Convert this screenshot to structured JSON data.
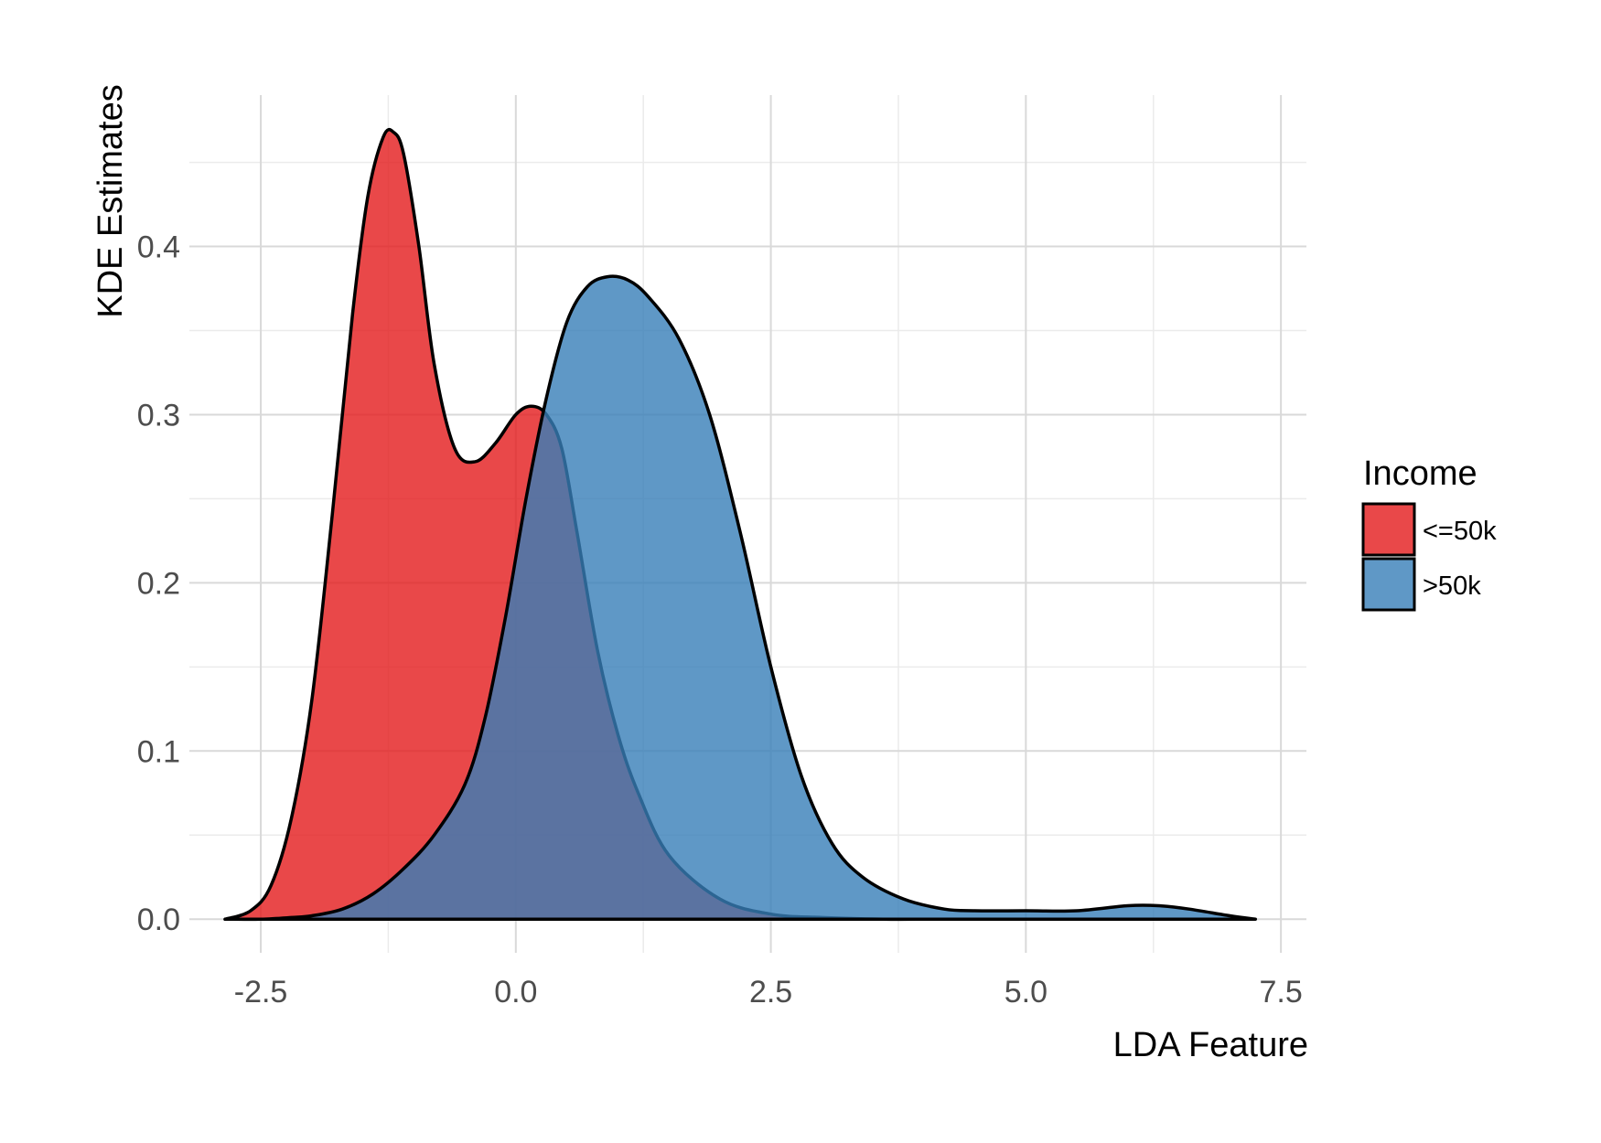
{
  "chart_data": {
    "type": "area",
    "xlabel": "LDA Feature",
    "ylabel": "KDE Estimates",
    "xlim": [
      -3.2,
      7.75
    ],
    "ylim": [
      -0.02,
      0.49
    ],
    "x_ticks": [
      -2.5,
      0.0,
      2.5,
      5.0,
      7.5
    ],
    "x_tick_labels": [
      "-2.5",
      "0.0",
      "2.5",
      "5.0",
      "7.5"
    ],
    "y_ticks": [
      0.0,
      0.1,
      0.2,
      0.3,
      0.4
    ],
    "y_tick_labels": [
      "0.0",
      "0.1",
      "0.2",
      "0.3",
      "0.4"
    ],
    "grid": true,
    "legend": {
      "title": "Income",
      "position": "right"
    },
    "series": [
      {
        "name": "<=50k",
        "color": "#e41a1c",
        "points": [
          [
            -2.85,
            0.0
          ],
          [
            -2.6,
            0.005
          ],
          [
            -2.4,
            0.02
          ],
          [
            -2.2,
            0.06
          ],
          [
            -2.0,
            0.13
          ],
          [
            -1.8,
            0.24
          ],
          [
            -1.6,
            0.36
          ],
          [
            -1.45,
            0.43
          ],
          [
            -1.3,
            0.465
          ],
          [
            -1.2,
            0.468
          ],
          [
            -1.1,
            0.455
          ],
          [
            -0.95,
            0.4
          ],
          [
            -0.8,
            0.33
          ],
          [
            -0.6,
            0.28
          ],
          [
            -0.4,
            0.272
          ],
          [
            -0.2,
            0.283
          ],
          [
            0.0,
            0.3
          ],
          [
            0.15,
            0.305
          ],
          [
            0.3,
            0.3
          ],
          [
            0.45,
            0.28
          ],
          [
            0.6,
            0.23
          ],
          [
            0.8,
            0.16
          ],
          [
            1.0,
            0.11
          ],
          [
            1.2,
            0.075
          ],
          [
            1.5,
            0.038
          ],
          [
            2.0,
            0.012
          ],
          [
            2.5,
            0.003
          ],
          [
            3.0,
            0.001
          ],
          [
            3.6,
            0.0
          ],
          [
            4.0,
            0.0
          ]
        ]
      },
      {
        "name": ">50k",
        "color": "#377eb8",
        "points": [
          [
            -2.85,
            0.0
          ],
          [
            -2.5,
            0.0
          ],
          [
            -2.2,
            0.001
          ],
          [
            -2.0,
            0.002
          ],
          [
            -1.7,
            0.006
          ],
          [
            -1.4,
            0.015
          ],
          [
            -1.1,
            0.03
          ],
          [
            -0.8,
            0.05
          ],
          [
            -0.5,
            0.08
          ],
          [
            -0.3,
            0.12
          ],
          [
            -0.1,
            0.18
          ],
          [
            0.1,
            0.25
          ],
          [
            0.3,
            0.31
          ],
          [
            0.5,
            0.355
          ],
          [
            0.7,
            0.376
          ],
          [
            0.9,
            0.382
          ],
          [
            1.1,
            0.38
          ],
          [
            1.3,
            0.37
          ],
          [
            1.6,
            0.345
          ],
          [
            1.9,
            0.3
          ],
          [
            2.2,
            0.23
          ],
          [
            2.5,
            0.15
          ],
          [
            2.8,
            0.085
          ],
          [
            3.1,
            0.045
          ],
          [
            3.4,
            0.025
          ],
          [
            3.8,
            0.012
          ],
          [
            4.2,
            0.006
          ],
          [
            4.5,
            0.005
          ],
          [
            5.0,
            0.005
          ],
          [
            5.5,
            0.005
          ],
          [
            6.0,
            0.008
          ],
          [
            6.3,
            0.008
          ],
          [
            6.6,
            0.006
          ],
          [
            7.0,
            0.002
          ],
          [
            7.25,
            0.0
          ]
        ]
      }
    ]
  }
}
